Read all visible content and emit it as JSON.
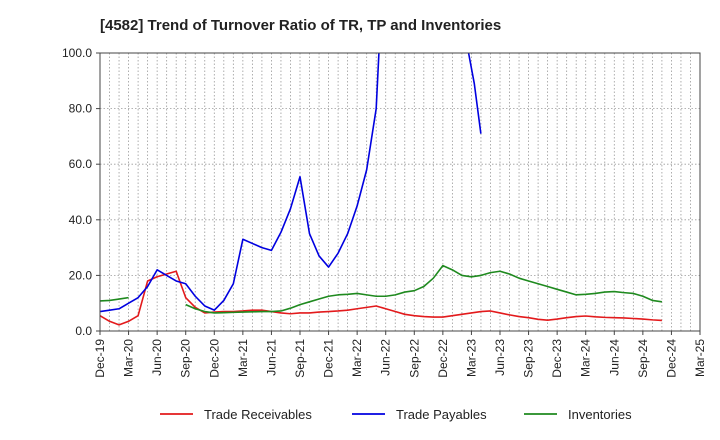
{
  "chart_data": {
    "type": "line",
    "title": "[4582]  Trend of Turnover Ratio of TR, TP and Inventories",
    "xlabel": "",
    "ylabel": "",
    "ylim": [
      0,
      100
    ],
    "yticks": [
      "0.0",
      "20.0",
      "40.0",
      "60.0",
      "80.0",
      "100.0"
    ],
    "xticks": [
      "Dec-19",
      "Mar-20",
      "Jun-20",
      "Sep-20",
      "Dec-20",
      "Mar-21",
      "Jun-21",
      "Sep-21",
      "Dec-21",
      "Mar-22",
      "Jun-22",
      "Sep-22",
      "Dec-22",
      "Mar-23",
      "Jun-23",
      "Sep-23",
      "Dec-23",
      "Mar-24",
      "Jun-24",
      "Sep-24",
      "Dec-24",
      "Mar-25"
    ],
    "grid": true,
    "legend_position": "bottom",
    "series": [
      {
        "name": "Trade Receivables",
        "color": "#e31a1c",
        "values": [
          5.5,
          3.5,
          2.2,
          3.5,
          5.5,
          18,
          19.5,
          20.5,
          21.5,
          12,
          8.5,
          6.5,
          6.8,
          7,
          7,
          7.2,
          7.5,
          7.5,
          7,
          6.5,
          6.2,
          6.5,
          6.5,
          6.8,
          7,
          7.2,
          7.5,
          8,
          8.5,
          9,
          8,
          7,
          6,
          5.5,
          5.2,
          5,
          5,
          5.5,
          6,
          6.5,
          7,
          7.2,
          6.5,
          5.8,
          5.2,
          4.8,
          4.2,
          3.9,
          4.3,
          4.8,
          5.2,
          5.4,
          5.1,
          4.9,
          4.8,
          4.7,
          4.5,
          4.3,
          4,
          3.8
        ]
      },
      {
        "name": "Trade Payables",
        "color": "#0000e0",
        "values": [
          7,
          7.5,
          8,
          10,
          12,
          16,
          22,
          20,
          18,
          17,
          12.5,
          9,
          7.5,
          11,
          17,
          33,
          31.5,
          30,
          29,
          35.5,
          44,
          55.5,
          35,
          27,
          23,
          28,
          35,
          45,
          58,
          80,
          150,
          null,
          null,
          null,
          null,
          null,
          null,
          null,
          null,
          null,
          null,
          null,
          null,
          null,
          null,
          null,
          null,
          null,
          null,
          null,
          null,
          null,
          null,
          null,
          null,
          null,
          null,
          null,
          null,
          null,
          null
        ],
        "tail": [
          [
            12.9,
            100
          ],
          [
            13.1,
            89
          ],
          [
            13.33,
            71
          ]
        ]
      },
      {
        "name": "Inventories",
        "color": "#1f8a1f",
        "values": [
          10.8,
          11,
          11.5,
          12,
          null,
          null,
          null,
          null,
          null,
          9.5,
          8,
          7,
          6.5,
          6.6,
          6.7,
          6.8,
          6.9,
          7,
          7,
          7.2,
          8.2,
          9.5,
          10.5,
          11.5,
          12.5,
          13,
          13.2,
          13.5,
          13,
          12.5,
          12.5,
          13,
          14,
          14.5,
          16,
          19,
          23.5,
          22,
          20,
          19.5,
          20,
          21,
          21.5,
          20.5,
          19,
          18,
          17,
          16,
          15,
          14,
          13,
          13.2,
          13.5,
          14,
          14.2,
          13.8,
          13.5,
          12.5,
          11,
          10.5
        ]
      }
    ]
  }
}
